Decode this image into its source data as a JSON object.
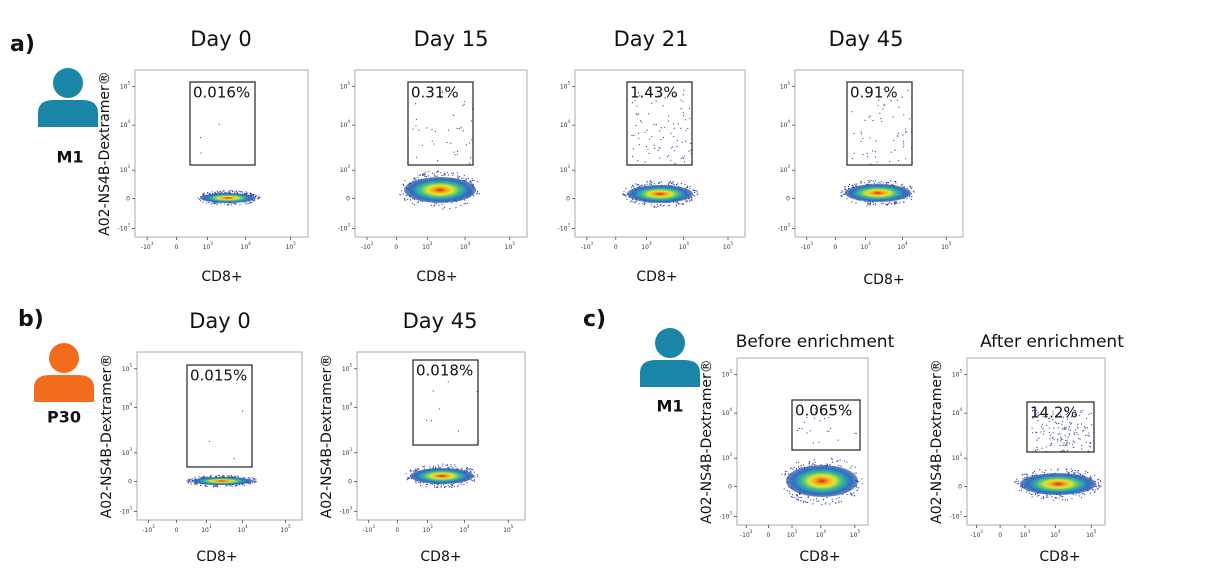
{
  "panels": [
    {
      "label": "a)",
      "person": "M1",
      "person_color": "#1a85a6",
      "plots": [
        {
          "title": "Day 0",
          "gate": "0.016%",
          "x_label": "CD8+",
          "y_label": "A02-NS4B-Dextramer®"
        },
        {
          "title": "Day 15",
          "gate": "0.31%",
          "x_label": "CD8+"
        },
        {
          "title": "Day 21",
          "gate": "1.43%",
          "x_label": "CD8+"
        },
        {
          "title": "Day 45",
          "gate": "0.91%",
          "x_label": "CD8+"
        }
      ]
    },
    {
      "label": "b)",
      "person": "P30",
      "person_color": "#f26c1e",
      "plots": [
        {
          "title": "Day 0",
          "gate": "0.015%",
          "x_label": "CD8+",
          "y_label": "A02-NS4B-Dextramer®"
        },
        {
          "title": "Day 45",
          "gate": "0.018%",
          "x_label": "CD8+",
          "y_label": "A02-NS4B-Dextramer®"
        }
      ]
    },
    {
      "label": "c)",
      "person": "M1",
      "person_color": "#1a85a6",
      "plots": [
        {
          "title": "Before enrichment",
          "gate": "0.065%",
          "x_label": "CD8+",
          "y_label": "A02-NS4B-Dextramer®"
        },
        {
          "title": "After enrichment",
          "gate": "14.2%",
          "x_label": "CD8+",
          "y_label": "A02-NS4B-Dextramer®"
        }
      ]
    }
  ],
  "axis_ticks": [
    {
      "base": "-10",
      "exp": "3"
    },
    {
      "base": "0"
    },
    {
      "base": "10",
      "exp": "3"
    },
    {
      "base": "10",
      "exp": "4"
    },
    {
      "base": "10",
      "exp": "5"
    }
  ]
}
